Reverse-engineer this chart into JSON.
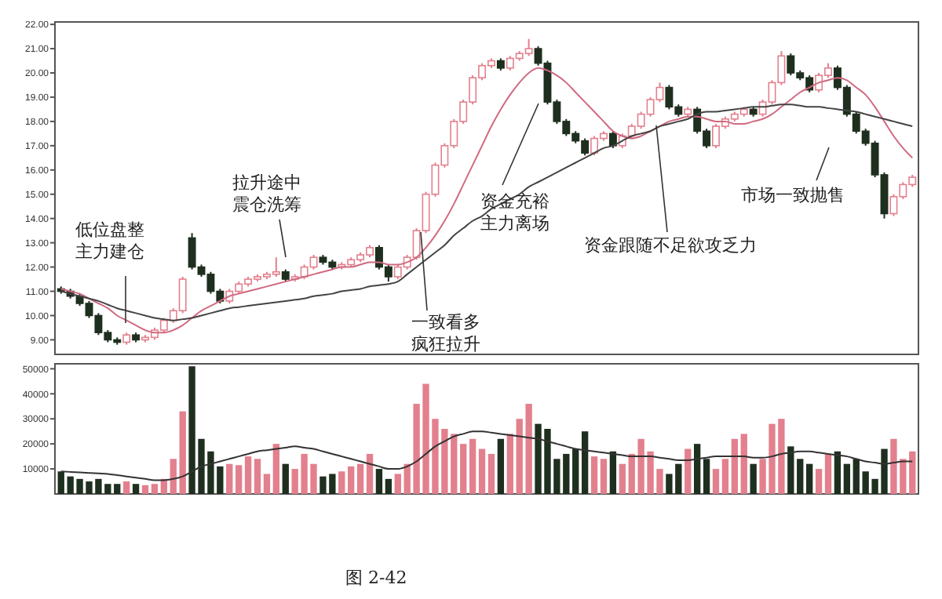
{
  "chart_data": [
    {
      "type": "candlestick",
      "categories": [
        null,
        null,
        null,
        null,
        null,
        null,
        null,
        null,
        null,
        null,
        null,
        null,
        null,
        null,
        null,
        null,
        null,
        null,
        null,
        null,
        null,
        null,
        null,
        null,
        null,
        null,
        null,
        null,
        null,
        null,
        null,
        null,
        null,
        null,
        null,
        null,
        null,
        null,
        null,
        null,
        null,
        null,
        null,
        null,
        null,
        null,
        null,
        null,
        null,
        null,
        null,
        null,
        null,
        null,
        null,
        null,
        null,
        null,
        null,
        null,
        null,
        null,
        null,
        null,
        null,
        null,
        null,
        null,
        null,
        null,
        null,
        null,
        null,
        null,
        null,
        null,
        null,
        null,
        null,
        null,
        null,
        null,
        null,
        null,
        null,
        null,
        null,
        null,
        null,
        null,
        null,
        null
      ],
      "ohlc": [
        [
          11.1,
          11.2,
          10.9,
          11.0
        ],
        [
          11.0,
          11.1,
          10.7,
          10.8
        ],
        [
          10.8,
          10.9,
          10.4,
          10.5
        ],
        [
          10.5,
          10.6,
          9.9,
          10.0
        ],
        [
          10.0,
          10.1,
          9.2,
          9.3
        ],
        [
          9.3,
          9.4,
          8.9,
          9.0
        ],
        [
          9.0,
          9.1,
          8.8,
          8.9
        ],
        [
          8.9,
          9.3,
          8.8,
          9.2
        ],
        [
          9.2,
          9.3,
          8.9,
          9.0
        ],
        [
          9.0,
          9.2,
          8.9,
          9.1
        ],
        [
          9.1,
          9.5,
          9.0,
          9.4
        ],
        [
          9.4,
          9.9,
          9.3,
          9.8
        ],
        [
          9.8,
          10.3,
          9.7,
          10.2
        ],
        [
          10.2,
          11.6,
          10.1,
          11.5
        ],
        [
          13.2,
          13.4,
          11.9,
          12.0
        ],
        [
          12.0,
          12.1,
          11.6,
          11.7
        ],
        [
          11.7,
          11.8,
          10.9,
          11.0
        ],
        [
          11.0,
          11.1,
          10.5,
          10.6
        ],
        [
          10.6,
          11.1,
          10.5,
          11.0
        ],
        [
          11.0,
          11.4,
          10.9,
          11.3
        ],
        [
          11.3,
          11.6,
          11.2,
          11.5
        ],
        [
          11.5,
          11.7,
          11.4,
          11.6
        ],
        [
          11.6,
          11.8,
          11.5,
          11.7
        ],
        [
          11.7,
          12.4,
          11.6,
          11.8
        ],
        [
          11.8,
          11.9,
          11.4,
          11.5
        ],
        [
          11.5,
          11.7,
          11.4,
          11.6
        ],
        [
          11.6,
          12.1,
          11.5,
          12.0
        ],
        [
          12.0,
          12.5,
          11.9,
          12.4
        ],
        [
          12.4,
          12.5,
          12.1,
          12.2
        ],
        [
          12.2,
          12.3,
          11.9,
          12.0
        ],
        [
          12.0,
          12.2,
          11.9,
          12.1
        ],
        [
          12.1,
          12.4,
          12.0,
          12.3
        ],
        [
          12.3,
          12.6,
          12.2,
          12.5
        ],
        [
          12.5,
          12.9,
          12.4,
          12.8
        ],
        [
          12.8,
          12.9,
          11.9,
          12.0
        ],
        [
          12.0,
          12.1,
          11.4,
          11.6
        ],
        [
          11.6,
          12.1,
          11.5,
          12.0
        ],
        [
          12.0,
          12.5,
          11.9,
          12.4
        ],
        [
          12.4,
          13.6,
          12.3,
          13.5
        ],
        [
          13.5,
          15.1,
          13.4,
          15.0
        ],
        [
          15.0,
          16.3,
          14.9,
          16.2
        ],
        [
          16.2,
          17.1,
          16.1,
          17.0
        ],
        [
          17.0,
          18.1,
          16.9,
          18.0
        ],
        [
          18.0,
          18.9,
          17.9,
          18.8
        ],
        [
          18.8,
          19.9,
          18.7,
          19.8
        ],
        [
          19.8,
          20.4,
          19.7,
          20.3
        ],
        [
          20.3,
          20.6,
          20.2,
          20.5
        ],
        [
          20.5,
          20.6,
          20.1,
          20.2
        ],
        [
          20.2,
          20.7,
          20.1,
          20.6
        ],
        [
          20.6,
          20.9,
          20.5,
          20.8
        ],
        [
          20.8,
          21.4,
          20.7,
          21.0
        ],
        [
          21.0,
          21.1,
          20.3,
          20.4
        ],
        [
          20.4,
          20.5,
          18.7,
          18.8
        ],
        [
          18.8,
          18.9,
          17.9,
          18.0
        ],
        [
          18.0,
          18.1,
          17.4,
          17.5
        ],
        [
          17.5,
          17.6,
          17.1,
          17.2
        ],
        [
          17.2,
          17.3,
          16.6,
          16.7
        ],
        [
          16.7,
          17.4,
          16.6,
          17.3
        ],
        [
          17.3,
          17.6,
          17.2,
          17.5
        ],
        [
          17.5,
          17.6,
          16.9,
          17.0
        ],
        [
          17.0,
          17.5,
          16.9,
          17.4
        ],
        [
          17.4,
          17.9,
          17.3,
          17.8
        ],
        [
          17.8,
          18.4,
          17.7,
          18.3
        ],
        [
          18.3,
          19.0,
          18.2,
          18.9
        ],
        [
          18.9,
          19.6,
          18.8,
          19.4
        ],
        [
          19.4,
          19.5,
          18.5,
          18.6
        ],
        [
          18.6,
          18.7,
          18.2,
          18.3
        ],
        [
          18.3,
          18.6,
          18.2,
          18.5
        ],
        [
          18.5,
          18.6,
          17.5,
          17.6
        ],
        [
          17.6,
          17.7,
          16.9,
          17.0
        ],
        [
          17.0,
          17.9,
          16.9,
          17.8
        ],
        [
          17.8,
          18.2,
          17.7,
          18.1
        ],
        [
          18.1,
          18.4,
          18.0,
          18.3
        ],
        [
          18.3,
          18.6,
          18.2,
          18.5
        ],
        [
          18.5,
          18.6,
          18.2,
          18.3
        ],
        [
          18.3,
          18.9,
          18.2,
          18.8
        ],
        [
          18.8,
          19.7,
          18.7,
          19.6
        ],
        [
          19.6,
          20.9,
          19.5,
          20.7
        ],
        [
          20.7,
          20.8,
          19.9,
          20.0
        ],
        [
          20.0,
          20.1,
          19.7,
          19.8
        ],
        [
          19.8,
          19.9,
          19.2,
          19.3
        ],
        [
          19.3,
          20.0,
          19.2,
          19.9
        ],
        [
          19.9,
          20.4,
          19.8,
          20.2
        ],
        [
          20.2,
          20.3,
          19.3,
          19.4
        ],
        [
          19.4,
          19.5,
          18.2,
          18.3
        ],
        [
          18.3,
          18.4,
          17.5,
          17.6
        ],
        [
          17.6,
          17.7,
          17.0,
          17.1
        ],
        [
          17.1,
          17.2,
          15.7,
          15.8
        ],
        [
          15.8,
          15.9,
          14.0,
          14.2
        ],
        [
          14.2,
          15.0,
          14.1,
          14.9
        ],
        [
          14.9,
          15.5,
          14.8,
          15.4
        ],
        [
          15.4,
          15.8,
          15.3,
          15.7
        ]
      ],
      "colors": [
        "#1f2f1f",
        "#1f2f1f",
        "#1f2f1f",
        "#1f2f1f",
        "#1f2f1f",
        "#1f2f1f",
        "#1f2f1f",
        "#e3808e",
        "#1f2f1f",
        "#e3808e",
        "#e3808e",
        "#e3808e",
        "#e3808e",
        "#e3808e",
        "#1f2f1f",
        "#1f2f1f",
        "#1f2f1f",
        "#1f2f1f",
        "#e3808e",
        "#e3808e",
        "#e3808e",
        "#e3808e",
        "#e3808e",
        "#e3808e",
        "#1f2f1f",
        "#e3808e",
        "#e3808e",
        "#e3808e",
        "#1f2f1f",
        "#1f2f1f",
        "#e3808e",
        "#e3808e",
        "#e3808e",
        "#e3808e",
        "#1f2f1f",
        "#1f2f1f",
        "#e3808e",
        "#e3808e",
        "#e3808e",
        "#e3808e",
        "#e3808e",
        "#e3808e",
        "#e3808e",
        "#e3808e",
        "#e3808e",
        "#e3808e",
        "#e3808e",
        "#1f2f1f",
        "#e3808e",
        "#e3808e",
        "#e3808e",
        "#1f2f1f",
        "#1f2f1f",
        "#1f2f1f",
        "#1f2f1f",
        "#1f2f1f",
        "#1f2f1f",
        "#e3808e",
        "#e3808e",
        "#1f2f1f",
        "#e3808e",
        "#e3808e",
        "#e3808e",
        "#e3808e",
        "#e3808e",
        "#1f2f1f",
        "#1f2f1f",
        "#e3808e",
        "#1f2f1f",
        "#1f2f1f",
        "#e3808e",
        "#e3808e",
        "#e3808e",
        "#e3808e",
        "#1f2f1f",
        "#e3808e",
        "#e3808e",
        "#e3808e",
        "#1f2f1f",
        "#1f2f1f",
        "#1f2f1f",
        "#e3808e",
        "#e3808e",
        "#1f2f1f",
        "#1f2f1f",
        "#1f2f1f",
        "#1f2f1f",
        "#1f2f1f",
        "#1f2f1f",
        "#e3808e",
        "#e3808e",
        "#e3808e"
      ],
      "series": [
        {
          "type": "line",
          "color": "#d06a80",
          "values": [
            11.1,
            11.0,
            10.9,
            10.7,
            10.5,
            10.3,
            10.0,
            9.8,
            9.6,
            9.4,
            9.3,
            9.3,
            9.4,
            9.6,
            9.9,
            10.2,
            10.4,
            10.6,
            10.8,
            10.9,
            11.0,
            11.1,
            11.2,
            11.3,
            11.4,
            11.5,
            11.6,
            11.7,
            11.8,
            11.9,
            12.0,
            12.0,
            12.1,
            12.2,
            12.2,
            12.1,
            12.1,
            12.2,
            12.4,
            12.8,
            13.3,
            13.9,
            14.6,
            15.4,
            16.2,
            17.0,
            17.8,
            18.5,
            19.1,
            19.6,
            20.0,
            20.2,
            20.1,
            19.9,
            19.6,
            19.2,
            18.8,
            18.4,
            18.0,
            17.6,
            17.4,
            17.3,
            17.4,
            17.6,
            17.8,
            18.0,
            18.1,
            18.2,
            18.2,
            18.1,
            18.0,
            18.0,
            17.9,
            17.9,
            18.0,
            18.1,
            18.3,
            18.6,
            18.9,
            19.2,
            19.4,
            19.6,
            19.7,
            19.8,
            19.7,
            19.4,
            19.1,
            18.6,
            18.0,
            17.4,
            16.9,
            16.5
          ]
        },
        {
          "type": "line",
          "color": "#444444",
          "values": [
            11.0,
            10.9,
            10.8,
            10.7,
            10.6,
            10.45,
            10.3,
            10.2,
            10.1,
            10.0,
            9.9,
            9.85,
            9.8,
            9.85,
            9.9,
            10.0,
            10.1,
            10.2,
            10.3,
            10.35,
            10.4,
            10.45,
            10.5,
            10.55,
            10.6,
            10.65,
            10.7,
            10.8,
            10.85,
            10.9,
            11.0,
            11.05,
            11.1,
            11.2,
            11.25,
            11.3,
            11.4,
            11.7,
            12.0,
            12.3,
            12.6,
            12.9,
            13.3,
            13.6,
            13.9,
            14.1,
            14.4,
            14.6,
            14.8,
            15.0,
            15.3,
            15.5,
            15.7,
            15.9,
            16.1,
            16.3,
            16.5,
            16.7,
            16.9,
            17.0,
            17.2,
            17.4,
            17.5,
            17.6,
            17.8,
            17.9,
            18.0,
            18.1,
            18.3,
            18.4,
            18.4,
            18.45,
            18.5,
            18.55,
            18.6,
            18.6,
            18.65,
            18.7,
            18.7,
            18.65,
            18.6,
            18.6,
            18.55,
            18.5,
            18.45,
            18.4,
            18.3,
            18.2,
            18.1,
            18.0,
            17.9,
            17.8
          ]
        }
      ],
      "ylim": [
        8.4,
        22.1
      ],
      "yticks": [
        {
          "value": 9,
          "label": "9.00"
        },
        {
          "value": 10,
          "label": "10.00"
        },
        {
          "value": 11,
          "label": "11.00"
        },
        {
          "value": 12,
          "label": "12.00"
        },
        {
          "value": 13,
          "label": "13.00"
        },
        {
          "value": 14,
          "label": "14.00"
        },
        {
          "value": 15,
          "label": "15.00"
        },
        {
          "value": 16,
          "label": "16.00"
        },
        {
          "value": 17,
          "label": "17.00"
        },
        {
          "value": 18,
          "label": "18.00"
        },
        {
          "value": 19,
          "label": "19.00"
        },
        {
          "value": 20,
          "label": "20.00"
        },
        {
          "value": 21,
          "label": "21.00"
        },
        {
          "value": 22,
          "label": "22.00"
        }
      ],
      "annotations": [
        "低位盘整主力建仓",
        "拉升途中震仓洗筹",
        "一致看多疯狂拉升",
        "资金充裕主力离场",
        "资金跟随不足欲攻乏力",
        "市场一致抛售",
        "图 2-42"
      ]
    },
    {
      "type": "bar",
      "categories": [
        null,
        null,
        null,
        null,
        null,
        null,
        null,
        null,
        null,
        null,
        null,
        null,
        null,
        null,
        null,
        null,
        null,
        null,
        null,
        null,
        null,
        null,
        null,
        null,
        null,
        null,
        null,
        null,
        null,
        null,
        null,
        null,
        null,
        null,
        null,
        null,
        null,
        null,
        null,
        null,
        null,
        null,
        null,
        null,
        null,
        null,
        null,
        null,
        null,
        null,
        null,
        null,
        null,
        null,
        null,
        null,
        null,
        null,
        null,
        null,
        null,
        null,
        null,
        null,
        null,
        null,
        null,
        null,
        null,
        null,
        null,
        null,
        null,
        null,
        null,
        null,
        null,
        null,
        null,
        null,
        null,
        null,
        null,
        null,
        null,
        null,
        null,
        null,
        null,
        null,
        null,
        null
      ],
      "values": [
        9000,
        7000,
        6000,
        5000,
        6000,
        4000,
        4000,
        5000,
        4000,
        3500,
        4000,
        6000,
        14000,
        33000,
        51000,
        22000,
        17000,
        11000,
        12000,
        11500,
        15000,
        14000,
        8000,
        20000,
        12000,
        10000,
        16000,
        12000,
        7000,
        8000,
        9000,
        11000,
        12000,
        16000,
        10000,
        6000,
        8000,
        12000,
        36000,
        44000,
        30000,
        26000,
        24000,
        20000,
        22000,
        18000,
        16000,
        22000,
        24000,
        30000,
        36000,
        28000,
        26000,
        14000,
        16000,
        18000,
        25000,
        15000,
        14000,
        17000,
        12000,
        16000,
        22000,
        17000,
        10000,
        8000,
        12000,
        18000,
        20000,
        14000,
        10000,
        14000,
        22000,
        24000,
        12000,
        14000,
        28000,
        30000,
        19000,
        14000,
        12000,
        10000,
        16000,
        17000,
        12000,
        14000,
        9000,
        6000,
        18000,
        22000,
        14000,
        17000
      ],
      "colors": [
        "#1f2f1f",
        "#1f2f1f",
        "#1f2f1f",
        "#1f2f1f",
        "#1f2f1f",
        "#1f2f1f",
        "#1f2f1f",
        "#e3808e",
        "#1f2f1f",
        "#e3808e",
        "#e3808e",
        "#e3808e",
        "#e3808e",
        "#e3808e",
        "#1f2f1f",
        "#1f2f1f",
        "#1f2f1f",
        "#1f2f1f",
        "#e3808e",
        "#e3808e",
        "#e3808e",
        "#e3808e",
        "#e3808e",
        "#e3808e",
        "#1f2f1f",
        "#e3808e",
        "#e3808e",
        "#e3808e",
        "#1f2f1f",
        "#1f2f1f",
        "#e3808e",
        "#e3808e",
        "#e3808e",
        "#e3808e",
        "#1f2f1f",
        "#1f2f1f",
        "#e3808e",
        "#e3808e",
        "#e3808e",
        "#e3808e",
        "#e3808e",
        "#e3808e",
        "#e3808e",
        "#e3808e",
        "#e3808e",
        "#e3808e",
        "#e3808e",
        "#1f2f1f",
        "#e3808e",
        "#e3808e",
        "#e3808e",
        "#1f2f1f",
        "#1f2f1f",
        "#1f2f1f",
        "#1f2f1f",
        "#1f2f1f",
        "#1f2f1f",
        "#e3808e",
        "#e3808e",
        "#1f2f1f",
        "#e3808e",
        "#e3808e",
        "#e3808e",
        "#e3808e",
        "#e3808e",
        "#1f2f1f",
        "#1f2f1f",
        "#e3808e",
        "#1f2f1f",
        "#1f2f1f",
        "#e3808e",
        "#e3808e",
        "#e3808e",
        "#e3808e",
        "#1f2f1f",
        "#e3808e",
        "#e3808e",
        "#e3808e",
        "#1f2f1f",
        "#1f2f1f",
        "#1f2f1f",
        "#e3808e",
        "#e3808e",
        "#1f2f1f",
        "#1f2f1f",
        "#1f2f1f",
        "#1f2f1f",
        "#1f2f1f",
        "#1f2f1f",
        "#e3808e",
        "#e3808e",
        "#e3808e"
      ],
      "series": [
        {
          "type": "line",
          "color": "#333333",
          "values": [
            9000,
            8800,
            8600,
            8400,
            8200,
            8000,
            7500,
            7000,
            6500,
            6000,
            5500,
            5500,
            6000,
            7000,
            9000,
            11000,
            12000,
            13000,
            14000,
            15000,
            16000,
            17000,
            17500,
            18000,
            18500,
            19000,
            18500,
            18000,
            17000,
            16000,
            15000,
            14000,
            13000,
            12000,
            11000,
            10000,
            10000,
            11000,
            13000,
            16000,
            19000,
            21000,
            23000,
            24000,
            25000,
            25000,
            24500,
            24000,
            23500,
            23000,
            22500,
            22000,
            21000,
            20000,
            19000,
            18000,
            17500,
            17000,
            16500,
            16000,
            15500,
            15000,
            15000,
            15000,
            14500,
            14000,
            13500,
            13500,
            14000,
            14500,
            15000,
            15000,
            15000,
            15000,
            14500,
            14500,
            15000,
            16000,
            16500,
            17000,
            17000,
            16500,
            16000,
            15500,
            15000,
            14000,
            13000,
            12500,
            12000,
            12500,
            13000,
            13000
          ]
        }
      ],
      "ylim": [
        0,
        52000
      ],
      "yticks": [
        10000,
        20000,
        30000,
        40000,
        50000
      ]
    }
  ]
}
